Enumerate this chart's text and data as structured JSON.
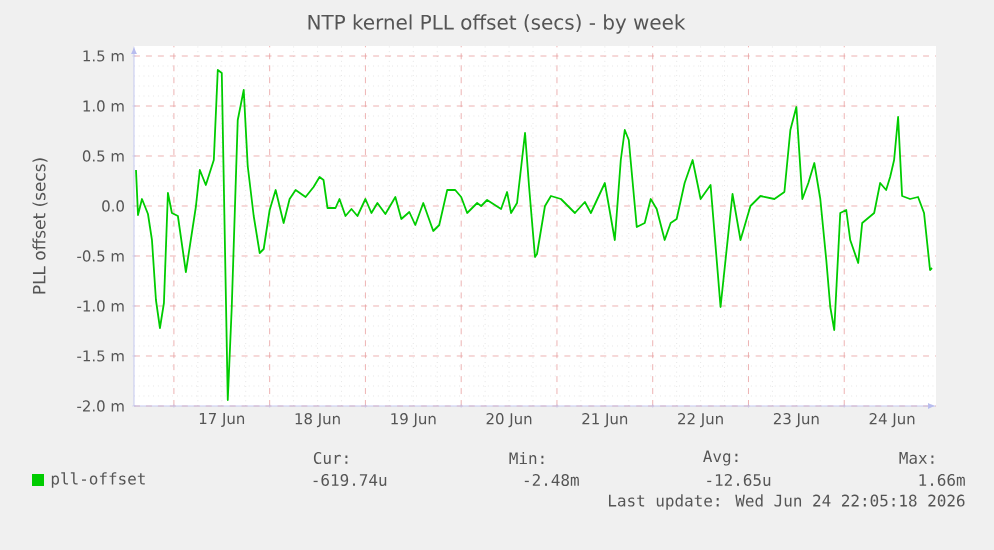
{
  "chart_data": {
    "type": "line",
    "title": "NTP kernel PLL offset (secs) - by week",
    "ylabel": "PLL offset (secs)",
    "xlim": [
      "2026-06-16T14:00",
      "2026-06-24T23:00"
    ],
    "ylim": [
      -2.0,
      1.6
    ],
    "xticks": [
      {
        "value": "2026-06-17T00:00",
        "label": null
      },
      {
        "value": "2026-06-17T12:00",
        "label": "17 Jun"
      },
      {
        "value": "2026-06-18T00:00",
        "label": null
      },
      {
        "value": "2026-06-18T12:00",
        "label": "18 Jun"
      },
      {
        "value": "2026-06-19T00:00",
        "label": null
      },
      {
        "value": "2026-06-19T12:00",
        "label": "19 Jun"
      },
      {
        "value": "2026-06-20T00:00",
        "label": null
      },
      {
        "value": "2026-06-20T12:00",
        "label": "20 Jun"
      },
      {
        "value": "2026-06-21T00:00",
        "label": null
      },
      {
        "value": "2026-06-21T12:00",
        "label": "21 Jun"
      },
      {
        "value": "2026-06-22T00:00",
        "label": null
      },
      {
        "value": "2026-06-22T12:00",
        "label": "22 Jun"
      },
      {
        "value": "2026-06-23T00:00",
        "label": null
      },
      {
        "value": "2026-06-23T12:00",
        "label": "23 Jun"
      },
      {
        "value": "2026-06-24T00:00",
        "label": null
      },
      {
        "value": "2026-06-24T12:00",
        "label": "24 Jun"
      }
    ],
    "yticks": [
      {
        "value": -2.0,
        "label": "-2.0 m"
      },
      {
        "value": -1.5,
        "label": "-1.5 m"
      },
      {
        "value": -1.0,
        "label": "-1.0 m"
      },
      {
        "value": -0.5,
        "label": "-0.5 m"
      },
      {
        "value": 0,
        "label": "0.0"
      },
      {
        "value": 0.5,
        "label": "0.5 m"
      },
      {
        "value": 1.0,
        "label": "1.0 m"
      },
      {
        "value": 1.5,
        "label": "1.5 m"
      }
    ],
    "grid": true,
    "legend": "bottom",
    "annotations": [
      "Cur:",
      "Min:",
      "Avg:",
      "Max:",
      "-619.74u",
      "-2.48m",
      "-12.65u",
      "1.66m",
      "Last update: Wed Jun 24 22:05:18 2026"
    ],
    "series": [
      {
        "name": "pll-offset",
        "color": "#00cc00",
        "x": [
          "2026-06-16T14:30",
          "2026-06-16T15:00",
          "2026-06-16T16:00",
          "2026-06-16T17:30",
          "2026-06-16T18:30",
          "2026-06-16T19:30",
          "2026-06-16T20:30",
          "2026-06-16T21:30",
          "2026-06-16T22:30",
          "2026-06-16T23:30",
          "2026-06-17T01:00",
          "2026-06-17T03:00",
          "2026-06-17T05:30",
          "2026-06-17T06:30",
          "2026-06-17T08:00",
          "2026-06-17T10:00",
          "2026-06-17T11:00",
          "2026-06-17T12:00",
          "2026-06-17T13:30",
          "2026-06-17T14:30",
          "2026-06-17T16:00",
          "2026-06-17T17:30",
          "2026-06-17T18:30",
          "2026-06-17T20:00",
          "2026-06-17T21:30",
          "2026-06-17T22:30",
          "2026-06-18T00:00",
          "2026-06-18T01:30",
          "2026-06-18T03:30",
          "2026-06-18T05:00",
          "2026-06-18T06:30",
          "2026-06-18T09:00",
          "2026-06-18T11:00",
          "2026-06-18T12:30",
          "2026-06-18T13:30",
          "2026-06-18T14:30",
          "2026-06-18T16:30",
          "2026-06-18T17:30",
          "2026-06-18T19:00",
          "2026-06-18T20:30",
          "2026-06-18T22:00",
          "2026-06-19T00:00",
          "2026-06-19T01:30",
          "2026-06-19T03:00",
          "2026-06-19T05:00",
          "2026-06-19T07:30",
          "2026-06-19T09:00",
          "2026-06-19T11:00",
          "2026-06-19T12:30",
          "2026-06-19T14:30",
          "2026-06-19T17:00",
          "2026-06-19T18:30",
          "2026-06-19T20:30",
          "2026-06-19T22:30",
          "2026-06-20T00:00",
          "2026-06-20T01:30",
          "2026-06-20T04:00",
          "2026-06-20T05:00",
          "2026-06-20T06:30",
          "2026-06-20T10:00",
          "2026-06-20T11:30",
          "2026-06-20T12:30",
          "2026-06-20T14:00",
          "2026-06-20T16:00",
          "2026-06-20T17:00",
          "2026-06-20T18:30",
          "2026-06-20T19:00",
          "2026-06-20T21:00",
          "2026-06-20T22:30",
          "2026-06-21T01:00",
          "2026-06-21T04:30",
          "2026-06-21T07:00",
          "2026-06-21T08:30",
          "2026-06-21T12:00",
          "2026-06-21T14:30",
          "2026-06-21T16:00",
          "2026-06-21T17:00",
          "2026-06-21T18:00",
          "2026-06-21T20:00",
          "2026-06-21T22:00",
          "2026-06-21T23:30",
          "2026-06-22T01:00",
          "2026-06-22T03:00",
          "2026-06-22T04:30",
          "2026-06-22T06:00",
          "2026-06-22T08:00",
          "2026-06-22T10:00",
          "2026-06-22T12:00",
          "2026-06-22T14:30",
          "2026-06-22T17:00",
          "2026-06-22T20:00",
          "2026-06-22T22:00",
          "2026-06-23T00:30",
          "2026-06-23T03:00",
          "2026-06-23T06:30",
          "2026-06-23T09:00",
          "2026-06-23T10:30",
          "2026-06-23T12:00",
          "2026-06-23T13:30",
          "2026-06-23T15:00",
          "2026-06-23T16:30",
          "2026-06-23T18:00",
          "2026-06-23T19:30",
          "2026-06-23T20:30",
          "2026-06-23T21:30",
          "2026-06-23T23:00",
          "2026-06-24T00:30",
          "2026-06-24T01:30",
          "2026-06-24T03:30",
          "2026-06-24T04:30",
          "2026-06-24T07:30",
          "2026-06-24T09:00",
          "2026-06-24T10:30",
          "2026-06-24T11:30",
          "2026-06-24T12:30",
          "2026-06-24T13:30",
          "2026-06-24T14:30",
          "2026-06-24T16:30",
          "2026-06-24T18:30",
          "2026-06-24T20:00",
          "2026-06-24T21:30",
          "2026-06-24T22:00"
        ],
        "values": [
          0.36,
          -0.09,
          0.07,
          -0.08,
          -0.34,
          -0.94,
          -1.22,
          -0.97,
          0.13,
          -0.07,
          -0.1,
          -0.66,
          -0.01,
          0.36,
          0.21,
          0.46,
          1.36,
          1.33,
          -1.94,
          -1.01,
          0.86,
          1.16,
          0.4,
          -0.1,
          -0.47,
          -0.43,
          -0.04,
          0.16,
          -0.17,
          0.07,
          0.16,
          0.09,
          0.19,
          0.29,
          0.26,
          -0.02,
          -0.02,
          0.07,
          -0.1,
          -0.03,
          -0.1,
          0.07,
          -0.07,
          0.03,
          -0.08,
          0.09,
          -0.13,
          -0.06,
          -0.19,
          0.03,
          -0.25,
          -0.19,
          0.16,
          0.16,
          0.09,
          -0.07,
          0.03,
          0.0,
          0.06,
          -0.03,
          0.14,
          -0.07,
          0.03,
          0.73,
          0.2,
          -0.51,
          -0.48,
          0.0,
          0.1,
          0.07,
          -0.07,
          0.04,
          -0.07,
          0.23,
          -0.34,
          0.46,
          0.76,
          0.66,
          -0.21,
          -0.17,
          0.07,
          -0.03,
          -0.34,
          -0.17,
          -0.13,
          0.23,
          0.46,
          0.07,
          0.21,
          -1.01,
          0.12,
          -0.34,
          0.0,
          0.1,
          0.07,
          0.14,
          0.76,
          0.99,
          0.07,
          0.23,
          0.43,
          0.07,
          -0.54,
          -1.01,
          -1.24,
          -0.07,
          -0.04,
          -0.34,
          -0.57,
          -0.17,
          -0.07,
          0.23,
          0.16,
          0.29,
          0.46,
          0.89,
          0.1,
          0.07,
          0.09,
          -0.07,
          -0.64,
          -0.62
        ]
      }
    ]
  }
}
